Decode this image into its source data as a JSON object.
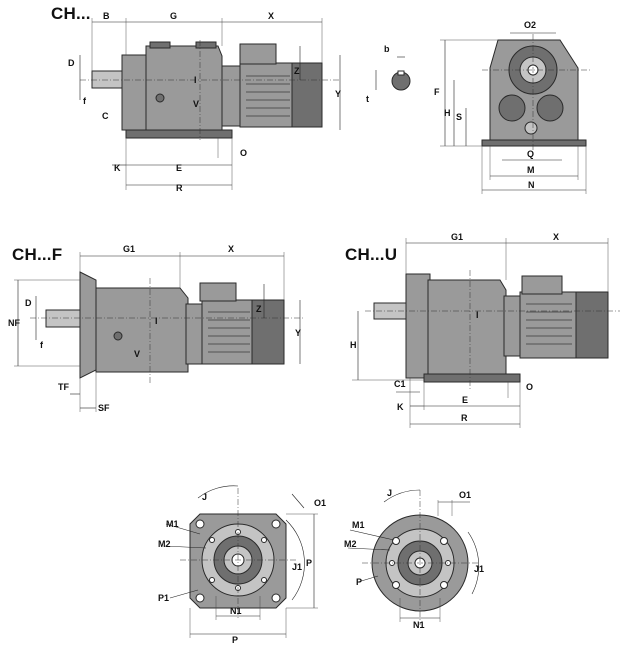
{
  "titles": {
    "ch": "CH...",
    "chf": "CH...F",
    "chu": "CH...U"
  },
  "labels": {
    "ch": {
      "B": "B",
      "G": "G",
      "X": "X",
      "D": "D",
      "f": "f",
      "C": "C",
      "I": "I",
      "Z": "Z",
      "Y": "Y",
      "V": "V",
      "K": "K",
      "E": "E",
      "R": "R",
      "O": "O",
      "b": "b",
      "t": "t",
      "O2": "O2",
      "F": "F",
      "H": "H",
      "S": "S",
      "Q": "Q",
      "M": "M",
      "N": "N"
    },
    "chf": {
      "G1": "G1",
      "X": "X",
      "NF": "NF",
      "D": "D",
      "f": "f",
      "I": "I",
      "Z": "Z",
      "Y": "Y",
      "V": "V",
      "TF": "TF",
      "SF": "SF"
    },
    "chu": {
      "G1": "G1",
      "X": "X",
      "H": "H",
      "I": "I",
      "C1": "C1",
      "O": "O",
      "K": "K",
      "E": "E",
      "R": "R"
    },
    "flange": {
      "J": "J",
      "O1": "O1",
      "M1": "M1",
      "M2": "M2",
      "J1": "J1",
      "P": "P",
      "P1": "P1",
      "N1": "N1"
    },
    "round": {
      "J": "J",
      "O1": "O1",
      "M1": "M1",
      "M2": "M2",
      "J1": "J1",
      "P": "P",
      "N1": "N1"
    }
  }
}
